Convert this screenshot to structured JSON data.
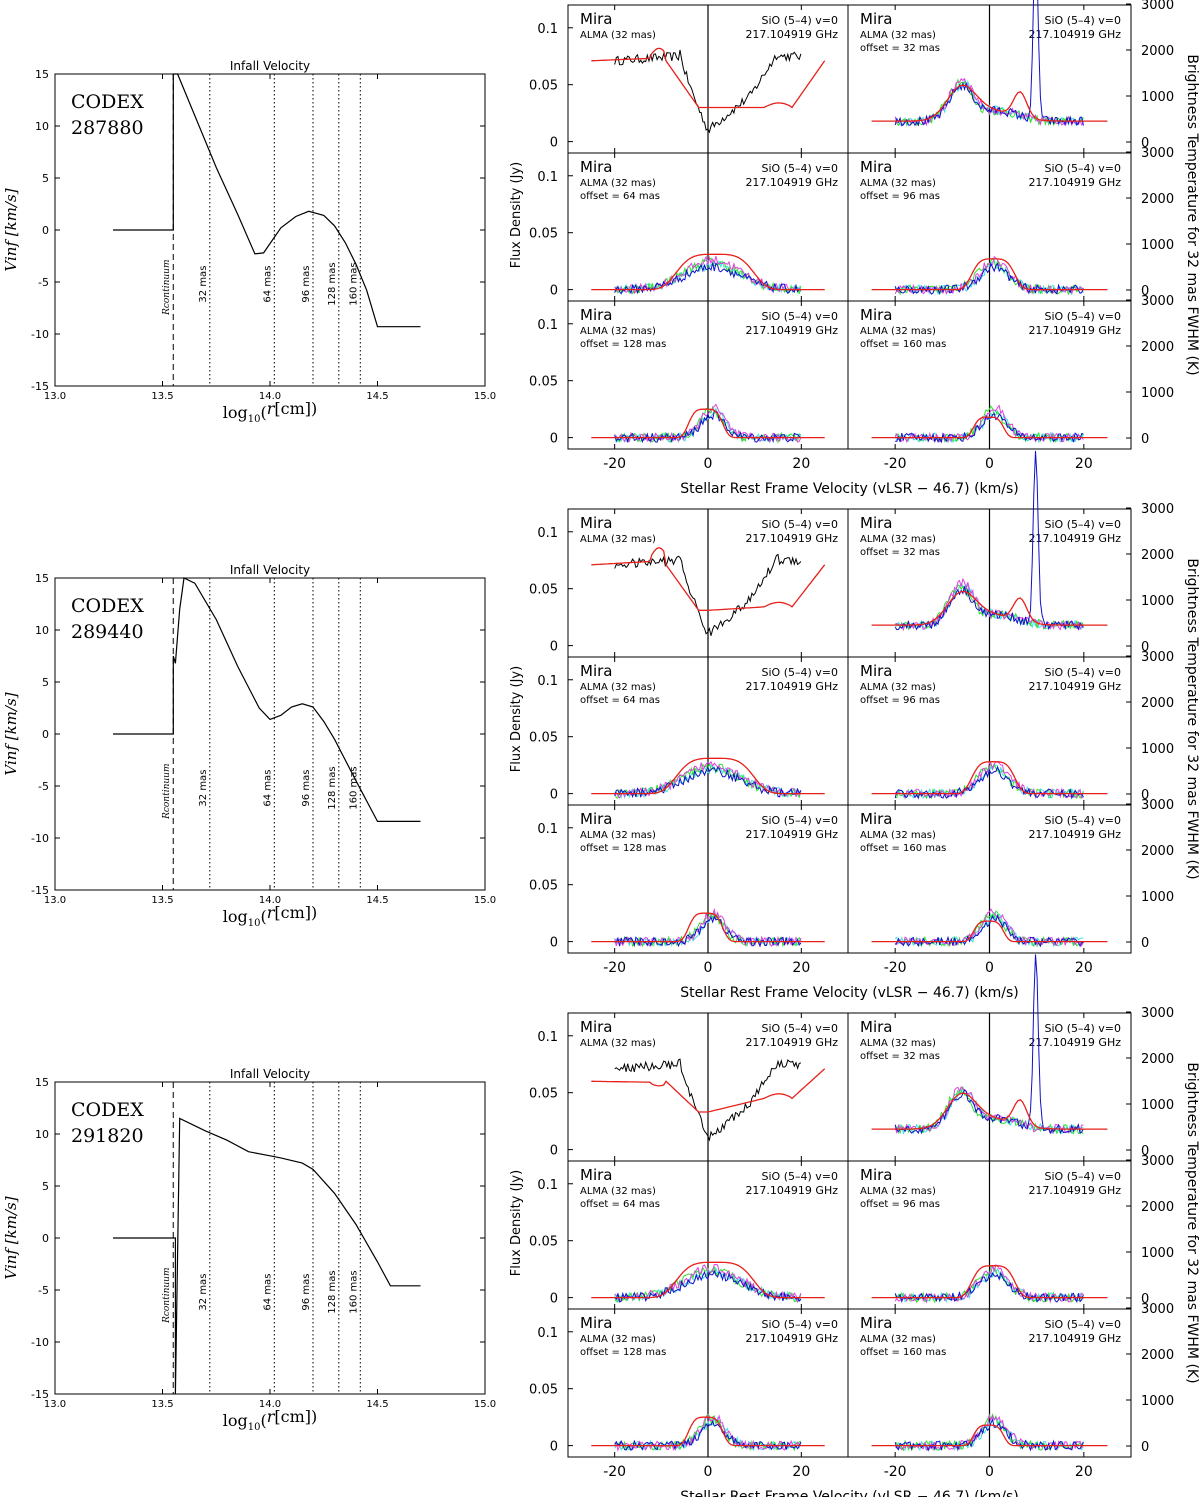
{
  "figure": {
    "infall_title": "Infall Velocity",
    "infall_xlabel": "log10(r[cm])",
    "infall_ylabel": "Vinf [km/s]",
    "infall_xticks": [
      13.0,
      13.5,
      14.0,
      14.5,
      15.0
    ],
    "infall_yticks": [
      -15,
      -10,
      -5,
      0,
      5,
      10,
      15
    ],
    "infall_xlim": [
      13.0,
      15.0
    ],
    "infall_ylim": [
      -15,
      15
    ],
    "r_continuum_label": "Rcontinuum",
    "r_continuum_logr": 13.55,
    "offset_markers": [
      {
        "label": "32 mas",
        "logr": 13.72
      },
      {
        "label": "64 mas",
        "logr": 14.02
      },
      {
        "label": "96 mas",
        "logr": 14.2
      },
      {
        "label": "128 mas",
        "logr": 14.32
      },
      {
        "label": "160 mas",
        "logr": 14.42
      }
    ],
    "spec_xlabel": "Stellar Rest Frame Velocity (vLSR − 46.7) (km/s)",
    "spec_ylabel": "Flux Density (Jy)",
    "spec_right_ylabel": "Brightness Temperature for 32 mas FWHM (K)",
    "spec_xticks": [
      -20,
      0,
      20
    ],
    "spec_xlim": [
      -30,
      30
    ],
    "spec_yticks": [
      0,
      0.05,
      0.1
    ],
    "spec_ylim": [
      -0.01,
      0.12
    ],
    "spec_right_ticks": [
      0,
      1000,
      2000,
      3000
    ],
    "panel_source": "Mira",
    "panel_line": "SiO (5–4) v=0",
    "panel_freq": "217.104919 GHz",
    "panel_beam": "ALMA (32 mas)",
    "panel_offsets": [
      "",
      "offset = 32 mas",
      "offset = 64 mas",
      "offset = 96 mas",
      "offset = 128 mas",
      "offset = 160 mas"
    ],
    "colors": {
      "observed": "#000000",
      "model": "#e8201a",
      "blue": "#1010c8",
      "green": "#30e030",
      "magenta": "#e040e0",
      "cyan": "#40e0e0"
    }
  },
  "chart_data": [
    {
      "type": "line",
      "title": "Infall Velocity",
      "model": "CODEX 287880",
      "model_name": "CODEX",
      "model_id": "287880",
      "xlabel": "log10(r[cm])",
      "ylabel": "Vinf [km/s]",
      "xlim": [
        13.0,
        15.0
      ],
      "ylim": [
        -15,
        15
      ],
      "x": [
        13.27,
        13.55,
        13.55,
        13.57,
        13.65,
        13.75,
        13.85,
        13.93,
        13.97,
        14.05,
        14.12,
        14.18,
        14.25,
        14.3,
        14.35,
        14.4,
        14.45,
        14.5,
        14.55,
        14.7
      ],
      "y": [
        0,
        0,
        15,
        15,
        11,
        6,
        1.5,
        -2.3,
        -2.2,
        0.2,
        1.3,
        1.8,
        1.4,
        0.4,
        -1.2,
        -3.3,
        -5.8,
        -9.3,
        -9.3,
        -9.3
      ],
      "spectra": {
        "model_center": [
          0.071,
          0.082,
          0.03,
          0.03,
          0.071
        ],
        "observed_center": [
          0.071,
          0.079,
          0.01,
          0.078,
          0.075
        ],
        "offset_peaks_model": [
          0.045,
          0.031,
          0.027,
          0.025,
          0.018
        ],
        "offset_peaks_observed": [
          0.155,
          0.026,
          0.027,
          0.033,
          0.024
        ]
      }
    },
    {
      "type": "line",
      "title": "Infall Velocity",
      "model": "CODEX 289440",
      "model_name": "CODEX",
      "model_id": "289440",
      "xlabel": "log10(r[cm])",
      "ylabel": "Vinf [km/s]",
      "xlim": [
        13.0,
        15.0
      ],
      "ylim": [
        -15,
        15
      ],
      "x": [
        13.27,
        13.55,
        13.55,
        13.56,
        13.58,
        13.6,
        13.65,
        13.75,
        13.85,
        13.95,
        14.0,
        14.05,
        14.1,
        14.15,
        14.2,
        14.25,
        14.3,
        14.4,
        14.5,
        14.7
      ],
      "y": [
        0,
        0,
        7.5,
        6.8,
        12,
        15,
        14.5,
        11,
        6.5,
        2.5,
        1.4,
        1.8,
        2.6,
        2.9,
        2.6,
        1.2,
        -0.5,
        -4.5,
        -8.4,
        -8.4
      ],
      "spectra": {
        "model_center": [
          0.071,
          0.086,
          0.031,
          0.034,
          0.071
        ],
        "observed_center": [
          0.071,
          0.079,
          0.01,
          0.078,
          0.075
        ],
        "offset_peaks_model": [
          0.043,
          0.031,
          0.028,
          0.025,
          0.018
        ],
        "offset_peaks_observed": [
          0.155,
          0.026,
          0.027,
          0.033,
          0.024
        ]
      }
    },
    {
      "type": "line",
      "title": "Infall Velocity",
      "model": "CODEX 291820",
      "model_name": "CODEX",
      "model_id": "291820",
      "xlabel": "log10(r[cm])",
      "ylabel": "Vinf [km/s]",
      "xlim": [
        13.0,
        15.0
      ],
      "ylim": [
        -15,
        15
      ],
      "x": [
        13.27,
        13.56,
        13.56,
        13.58,
        13.7,
        13.8,
        13.9,
        14.0,
        14.05,
        14.15,
        14.2,
        14.3,
        14.4,
        14.5,
        14.56,
        14.7
      ],
      "y": [
        0,
        0,
        -15,
        11.5,
        10.3,
        9.4,
        8.3,
        7.9,
        7.7,
        7.2,
        6.6,
        4.3,
        1.3,
        -2.3,
        -4.6,
        -4.6
      ],
      "spectra": {
        "model_center": [
          0.06,
          0.056,
          0.033,
          0.045,
          0.071
        ],
        "observed_center": [
          0.071,
          0.079,
          0.01,
          0.078,
          0.075
        ],
        "offset_peaks_model": [
          0.045,
          0.031,
          0.028,
          0.025,
          0.018
        ],
        "offset_peaks_observed": [
          0.155,
          0.026,
          0.027,
          0.033,
          0.024
        ]
      }
    }
  ]
}
